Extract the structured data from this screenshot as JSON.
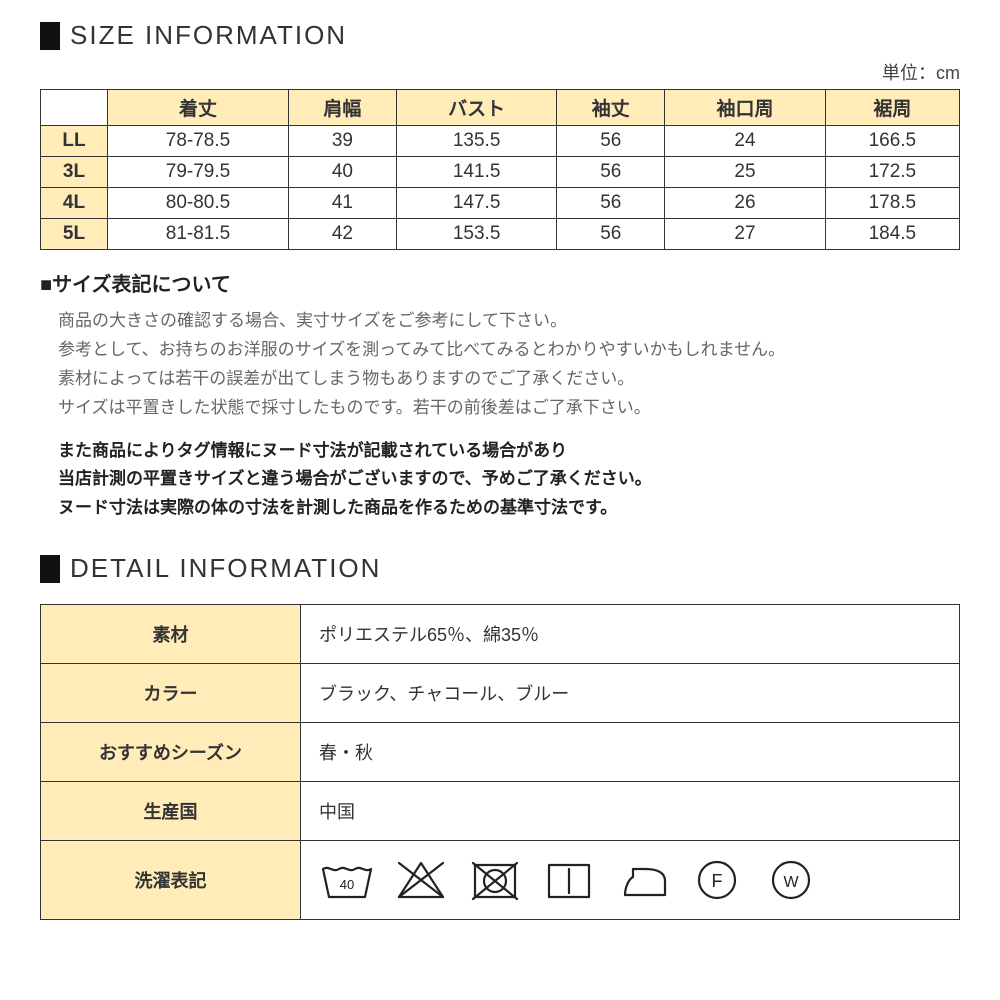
{
  "size_section": {
    "title": "SIZE INFORMATION",
    "unit_label": "単位：cm",
    "columns": [
      "着丈",
      "肩幅",
      "バスト",
      "袖丈",
      "袖口周",
      "裾周"
    ],
    "rows": [
      {
        "label": "LL",
        "values": [
          "78-78.5",
          "39",
          "135.5",
          "56",
          "24",
          "166.5"
        ]
      },
      {
        "label": "3L",
        "values": [
          "79-79.5",
          "40",
          "141.5",
          "56",
          "25",
          "172.5"
        ]
      },
      {
        "label": "4L",
        "values": [
          "80-80.5",
          "41",
          "147.5",
          "56",
          "26",
          "178.5"
        ]
      },
      {
        "label": "5L",
        "values": [
          "81-81.5",
          "42",
          "153.5",
          "56",
          "27",
          "184.5"
        ]
      }
    ],
    "note_title": "■サイズ表記について",
    "note_lines": [
      "商品の大きさの確認する場合、実寸サイズをご参考にして下さい。",
      "参考として、お持ちのお洋服のサイズを測ってみて比べてみるとわかりやすいかもしれません。",
      "素材によっては若干の誤差が出てしまう物もありますのでご了承ください。",
      "サイズは平置きした状態で採寸したものです。若干の前後差はご了承下さい。"
    ],
    "note_bold_lines": [
      "また商品によりタグ情報にヌード寸法が記載されている場合があり",
      "当店計測の平置きサイズと違う場合がございますので、予めご了承ください。",
      "ヌード寸法は実際の体の寸法を計測した商品を作るための基準寸法です。"
    ]
  },
  "detail_section": {
    "title": "DETAIL INFORMATION",
    "rows": [
      {
        "label": "素材",
        "value": "ポリエステル65％、綿35％"
      },
      {
        "label": "カラー",
        "value": "ブラック、チャコール、ブルー"
      },
      {
        "label": "おすすめシーズン",
        "value": "春・秋"
      },
      {
        "label": "生産国",
        "value": "中国"
      }
    ],
    "laundry_label": "洗濯表記",
    "laundry_icons": [
      "wash-40",
      "no-bleach",
      "no-tumble",
      "dry-line",
      "iron",
      "dryclean-f",
      "wetclean-w"
    ]
  },
  "colors": {
    "header_bg": "#ffecb8",
    "border": "#333333",
    "text": "#333333",
    "muted": "#666666"
  }
}
